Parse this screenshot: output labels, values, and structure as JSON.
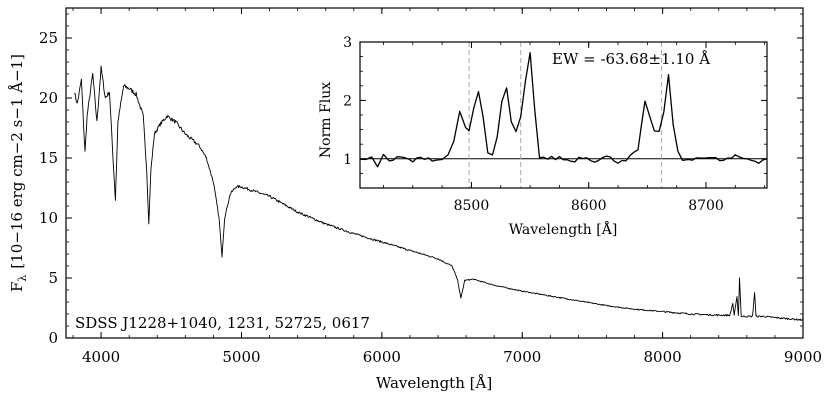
{
  "chart_data": {
    "main": {
      "type": "line",
      "xlabel": "Wavelength [Å]",
      "ylabel": {
        "symbol": "F",
        "subscript": "λ",
        "units": "[10−16 erg cm−2 s−1 Å−1]"
      },
      "xlim": [
        3750,
        9000
      ],
      "ylim": [
        0,
        27.5
      ],
      "xticks": [
        {
          "value": 4000,
          "label": "4000"
        },
        {
          "value": 5000,
          "label": "5000"
        },
        {
          "value": 6000,
          "label": "6000"
        },
        {
          "value": 7000,
          "label": "7000"
        },
        {
          "value": 8000,
          "label": "8000"
        },
        {
          "value": 9000,
          "label": "9000"
        }
      ],
      "yticks": [
        {
          "value": 0,
          "label": "0"
        },
        {
          "value": 5,
          "label": "5"
        },
        {
          "value": 10,
          "label": "10"
        },
        {
          "value": 15,
          "label": "15"
        },
        {
          "value": 20,
          "label": "20"
        },
        {
          "value": 25,
          "label": "25"
        }
      ],
      "annotation": "SDSS J1228+1040, 1231, 52725, 0617",
      "series": [
        {
          "name": "spectrum",
          "x": [
            3810,
            3830,
            3860,
            3885,
            3900,
            3940,
            3970,
            4000,
            4030,
            4060,
            4085,
            4102,
            4120,
            4160,
            4200,
            4250,
            4300,
            4325,
            4340,
            4355,
            4380,
            4420,
            4470,
            4530,
            4600,
            4650,
            4700,
            4750,
            4800,
            4840,
            4861,
            4880,
            4920,
            4960,
            5000,
            5100,
            5200,
            5400,
            5600,
            5800,
            6000,
            6200,
            6400,
            6500,
            6540,
            6563,
            6590,
            6650,
            6800,
            7000,
            7200,
            7400,
            7600,
            7800,
            8000,
            8200,
            8400,
            8480,
            8500,
            8510,
            8530,
            8540,
            8548,
            8560,
            8600,
            8640,
            8655,
            8665,
            8680,
            8720,
            8800,
            9000
          ],
          "y": [
            20.5,
            19.5,
            21.5,
            15.5,
            18.5,
            22.0,
            18.0,
            22.5,
            20.0,
            20.5,
            15.0,
            11.5,
            18.0,
            21.0,
            20.8,
            20.3,
            18.5,
            14.0,
            9.5,
            14.0,
            17.0,
            17.8,
            18.5,
            18.0,
            17.0,
            16.5,
            16.0,
            15.0,
            13.0,
            10.0,
            6.8,
            10.0,
            12.0,
            12.6,
            12.6,
            12.2,
            11.8,
            10.5,
            9.5,
            8.7,
            8.0,
            7.3,
            6.6,
            6.0,
            4.8,
            3.3,
            4.8,
            4.9,
            4.4,
            3.9,
            3.5,
            3.1,
            2.7,
            2.4,
            2.2,
            2.0,
            1.9,
            1.9,
            2.9,
            1.9,
            3.4,
            1.9,
            5.0,
            1.8,
            1.8,
            1.8,
            3.8,
            1.8,
            1.8,
            1.8,
            1.7,
            1.5
          ]
        }
      ]
    },
    "inset": {
      "type": "line",
      "xlabel": "Wavelength [Å]",
      "ylabel": "Norm Flux",
      "xlim": [
        8405,
        8752
      ],
      "ylim": [
        0.5,
        3.0
      ],
      "xticks": [
        {
          "value": 8500,
          "label": "8500"
        },
        {
          "value": 8600,
          "label": "8600"
        },
        {
          "value": 8700,
          "label": "8700"
        }
      ],
      "yticks": [
        {
          "value": 1,
          "label": "1"
        },
        {
          "value": 2,
          "label": "2"
        },
        {
          "value": 3,
          "label": "3"
        }
      ],
      "reference_line": 1.0,
      "dashed_lines": [
        8498,
        8542,
        8662
      ],
      "annotation": "EW = -63.68±1.10 Å",
      "series": [
        {
          "name": "normalized CaII triplet",
          "x": [
            8405,
            8410,
            8415,
            8420,
            8425,
            8430,
            8440,
            8450,
            8460,
            8470,
            8475,
            8480,
            8485,
            8490,
            8495,
            8498,
            8502,
            8506,
            8510,
            8514,
            8518,
            8522,
            8526,
            8530,
            8534,
            8538,
            8542,
            8546,
            8550,
            8554,
            8558,
            8565,
            8575,
            8585,
            8595,
            8605,
            8615,
            8625,
            8635,
            8642,
            8648,
            8652,
            8656,
            8660,
            8664,
            8668,
            8672,
            8676,
            8680,
            8685,
            8695,
            8705,
            8715,
            8725,
            8735,
            8745,
            8752
          ],
          "y": [
            1.0,
            0.95,
            1.05,
            0.9,
            1.05,
            0.97,
            1.02,
            0.96,
            1.03,
            0.98,
            1.0,
            1.05,
            1.3,
            1.85,
            1.5,
            1.45,
            1.85,
            2.15,
            1.7,
            1.1,
            1.05,
            1.35,
            2.0,
            2.2,
            1.6,
            1.45,
            1.7,
            2.3,
            2.8,
            1.8,
            1.05,
            1.0,
            1.02,
            0.96,
            1.04,
            0.98,
            1.03,
            0.96,
            1.02,
            1.15,
            1.95,
            1.7,
            1.5,
            1.45,
            1.8,
            2.4,
            1.6,
            1.1,
            1.0,
            0.95,
            1.05,
            1.0,
            0.97,
            1.03,
            1.0,
            0.96,
            1.0
          ]
        }
      ]
    }
  }
}
